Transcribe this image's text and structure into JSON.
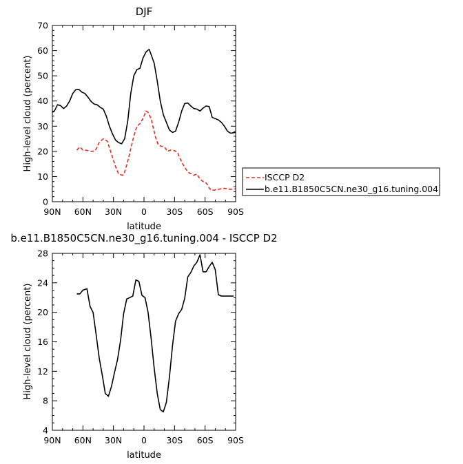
{
  "chart_data": [
    {
      "type": "line",
      "title": "DJF",
      "xlabel": "latitude",
      "ylabel": "High-level cloud (percent)",
      "xlim": [
        90,
        -90
      ],
      "ylim": [
        0,
        70
      ],
      "xticks": [
        90,
        60,
        30,
        0,
        -30,
        -60,
        -90
      ],
      "xtick_labels": [
        "90N",
        "60N",
        "30N",
        "0",
        "30S",
        "60S",
        "90S"
      ],
      "yticks": [
        0,
        10,
        20,
        30,
        40,
        50,
        60,
        70
      ],
      "ytick_labels": [
        "0",
        "10",
        "20",
        "30",
        "40",
        "50",
        "60",
        "70"
      ],
      "legend_position": "right",
      "series": [
        {
          "name": "ISCCP D2",
          "color": "#e8281e",
          "dash": "dashed",
          "x": [
            66,
            63,
            60,
            56,
            52,
            48,
            44,
            40,
            36,
            32,
            28,
            25,
            21,
            19,
            16,
            13,
            10,
            7,
            4,
            1,
            -2,
            -4,
            -7,
            -9,
            -11,
            -14,
            -17,
            -20,
            -23,
            -26,
            -30,
            -33,
            -35,
            -38,
            -41,
            -44,
            -47,
            -49,
            -52,
            -55,
            -58,
            -60,
            -62,
            -64,
            -66,
            -69,
            -71,
            -74,
            -77,
            -79,
            -82,
            -85,
            -88,
            -90
          ],
          "y": [
            20.5,
            21.8,
            20.5,
            20.4,
            20.0,
            20.2,
            23.5,
            25.0,
            24.0,
            19.0,
            14.0,
            11.0,
            10.5,
            11.8,
            16.0,
            21.0,
            26.0,
            30.0,
            31.0,
            33.0,
            36.0,
            35.5,
            33.0,
            29.5,
            26.0,
            22.5,
            22.0,
            21.8,
            20.0,
            20.5,
            20.3,
            19.5,
            17.5,
            15.0,
            13.0,
            11.5,
            11.0,
            10.5,
            11.0,
            9.0,
            8.0,
            7.8,
            7.0,
            5.5,
            4.5,
            4.6,
            4.8,
            5.0,
            5.2,
            5.3,
            5.1,
            4.9,
            5.0,
            5.1
          ]
        },
        {
          "name": "b.e11.B1850C5CN.ne30_g16.tuning.004",
          "color": "#000000",
          "dash": "solid",
          "x": [
            90,
            88,
            85,
            82,
            79,
            76,
            73,
            70,
            67,
            64,
            61,
            58,
            55,
            52,
            49,
            46,
            43,
            40,
            37,
            34,
            31,
            28,
            25,
            22,
            19,
            16,
            13,
            10,
            7,
            4,
            1,
            -2,
            -5,
            -7,
            -10,
            -13,
            -16,
            -19,
            -22,
            -25,
            -28,
            -31,
            -34,
            -37,
            -40,
            -43,
            -46,
            -49,
            -52,
            -55,
            -58,
            -61,
            -64,
            -67,
            -70,
            -73,
            -76,
            -79,
            -82,
            -85,
            -88,
            -90
          ],
          "y": [
            35.5,
            36.0,
            38.5,
            38.2,
            37.0,
            38.0,
            40.0,
            43.0,
            44.5,
            44.6,
            43.5,
            43.0,
            41.5,
            39.8,
            38.8,
            38.5,
            37.5,
            36.8,
            34.0,
            30.0,
            27.0,
            24.5,
            23.5,
            23.0,
            25.0,
            32.0,
            43.0,
            50.0,
            52.5,
            53.0,
            57.0,
            59.5,
            60.5,
            58.5,
            55.0,
            48.0,
            40.0,
            34.5,
            31.5,
            28.5,
            27.5,
            28.0,
            31.5,
            36.0,
            39.0,
            39.2,
            38.0,
            37.0,
            36.8,
            36.0,
            37.2,
            38.0,
            37.8,
            33.5,
            33.0,
            32.5,
            31.5,
            30.0,
            28.0,
            27.2,
            27.4,
            27.5
          ]
        }
      ]
    },
    {
      "type": "line",
      "title": "b.e11.B1850C5CN.ne30_g16.tuning.004 - ISCCP D2",
      "xlabel": "latitude",
      "ylabel": "High-level cloud (percent)",
      "xlim": [
        90,
        -90
      ],
      "ylim": [
        4,
        28
      ],
      "xticks": [
        90,
        60,
        30,
        0,
        -30,
        -60,
        -90
      ],
      "xtick_labels": [
        "90N",
        "60N",
        "30N",
        "0",
        "30S",
        "60S",
        "90S"
      ],
      "yticks": [
        4,
        8,
        12,
        16,
        20,
        24,
        28
      ],
      "ytick_labels": [
        "4",
        "8",
        "12",
        "16",
        "20",
        "24",
        "28"
      ],
      "series": [
        {
          "name": "",
          "color": "#000000",
          "dash": "solid",
          "x": [
            66,
            63,
            60,
            56,
            53,
            50,
            47,
            44,
            41,
            38,
            35,
            32,
            29,
            26,
            23,
            20,
            17,
            14,
            11,
            8,
            5,
            2,
            -1,
            -4,
            -7,
            -10,
            -13,
            -16,
            -19,
            -22,
            -25,
            -28,
            -31,
            -34,
            -37,
            -40,
            -43,
            -46,
            -49,
            -52,
            -55,
            -58,
            -61,
            -64,
            -67,
            -70,
            -73,
            -76,
            -79,
            -82,
            -85,
            -88
          ],
          "y": [
            22.5,
            22.5,
            23.0,
            23.2,
            20.8,
            20.0,
            17.0,
            13.8,
            11.5,
            9.0,
            8.6,
            9.9,
            11.8,
            13.6,
            16.2,
            19.8,
            21.8,
            22.0,
            22.2,
            24.4,
            24.2,
            22.3,
            22.0,
            20.0,
            16.5,
            12.4,
            9.0,
            6.8,
            6.5,
            7.8,
            11.2,
            15.5,
            18.8,
            19.8,
            20.4,
            21.9,
            24.8,
            25.4,
            26.3,
            26.8,
            27.8,
            25.5,
            25.5,
            26.2,
            26.8,
            25.8,
            22.4,
            22.2,
            22.2,
            22.2,
            22.2,
            22.2
          ]
        }
      ]
    }
  ]
}
